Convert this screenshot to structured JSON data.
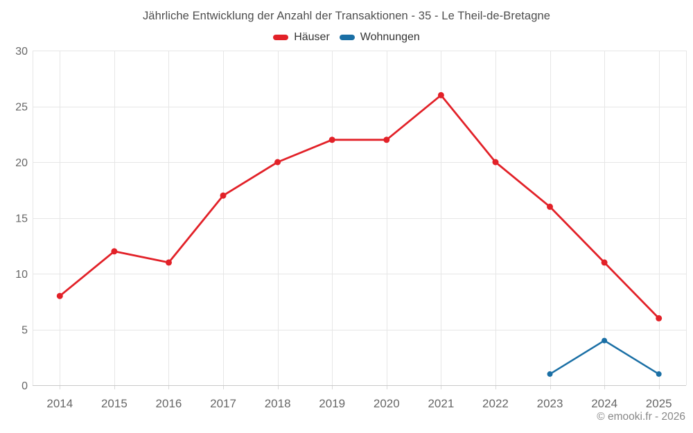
{
  "footer": {
    "text": "© emooki.fr - 2026"
  },
  "chart_data": {
    "type": "line",
    "title": "Jährliche Entwicklung der Anzahl der Transaktionen - 35 - Le Theil-de-Bretagne",
    "categories": [
      "2014",
      "2015",
      "2016",
      "2017",
      "2018",
      "2019",
      "2020",
      "2021",
      "2022",
      "2023",
      "2024",
      "2025"
    ],
    "series": [
      {
        "name": "Häuser",
        "color": "#e22128",
        "marker_radius": 4.5,
        "line_width": 2.8,
        "values": [
          8,
          12,
          11,
          17,
          20,
          22,
          22,
          26,
          20,
          16,
          11,
          6
        ]
      },
      {
        "name": "Wohnungen",
        "color": "#1a6fa5",
        "marker_radius": 4,
        "line_width": 2.5,
        "values": [
          null,
          null,
          null,
          null,
          null,
          null,
          null,
          null,
          null,
          1,
          4,
          1
        ]
      }
    ],
    "xlabel": "",
    "ylabel": "",
    "ylim": [
      0,
      30
    ],
    "ytick_step": 5,
    "grid": true,
    "legend_position": "top"
  }
}
